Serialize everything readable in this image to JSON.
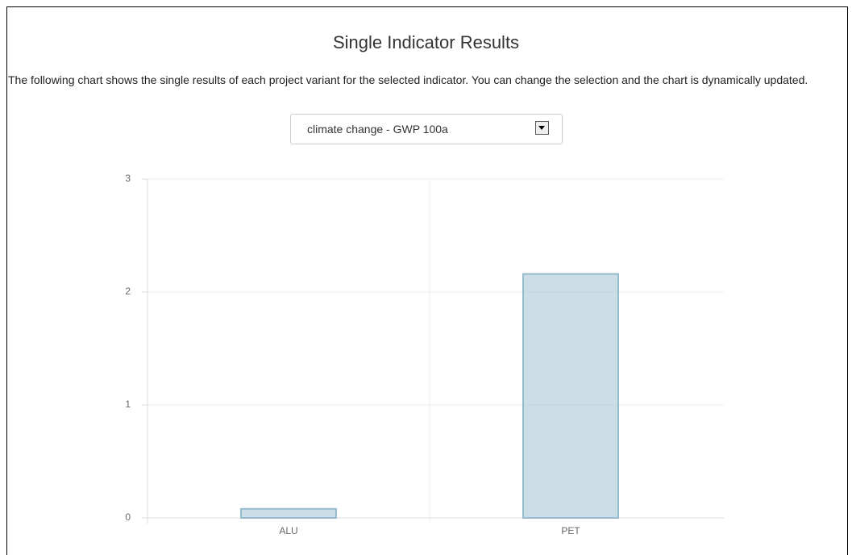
{
  "header": {
    "title": "Single Indicator Results"
  },
  "description": "The following chart shows the single results of each project variant for the selected indicator. You can change the selection and the chart is dynamically updated.",
  "selector": {
    "value": "climate change - GWP 100a"
  },
  "chart_data": {
    "type": "bar",
    "categories": [
      "ALU",
      "PET"
    ],
    "values": [
      0.08,
      2.16
    ],
    "color": "#97bbcd",
    "ylim": [
      0,
      3
    ],
    "yticks": [
      0,
      1,
      2,
      3
    ],
    "grid": true
  }
}
